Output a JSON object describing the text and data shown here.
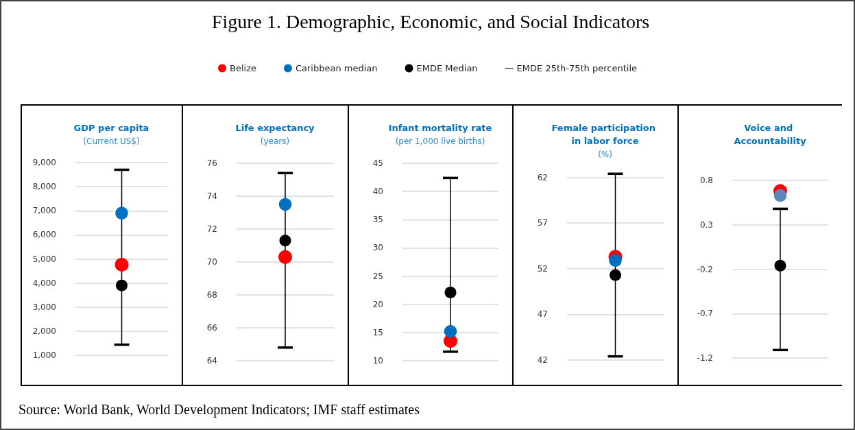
{
  "chart_data": [
    {
      "type": "scatter",
      "title": "GDP per capita",
      "subtitle": "(Current US$)",
      "annotations": [
        "Figure 1. Demographic, Economic, and Social Indicators",
        "Source: World Bank, World Development Indicators; IMF staff estimates"
      ],
      "categories": [
        null
      ],
      "ylim": [
        1000,
        9000
      ],
      "yticks": [
        {
          "value": 1000,
          "label": "1,000"
        },
        {
          "value": 2000,
          "label": "2,000"
        },
        {
          "value": 3000,
          "label": "3,000"
        },
        {
          "value": 4000,
          "label": "4,000"
        },
        {
          "value": 5000,
          "label": "5,000"
        },
        {
          "value": 6000,
          "label": "6,000"
        },
        {
          "value": 7000,
          "label": "7,000"
        },
        {
          "value": 8000,
          "label": "8,000"
        },
        {
          "value": 9000,
          "label": "9,000"
        }
      ],
      "grid": "y",
      "legend": "top",
      "marker": "circle",
      "tick_labels": "y",
      "series": [
        {
          "name": "Belize",
          "color": "#ff0000",
          "values": [
            4760
          ]
        },
        {
          "name": "Caribbean median",
          "color": "#0070c0",
          "values": [
            6900
          ]
        },
        {
          "name": "EMDE Median",
          "color": "#000000",
          "values": [
            3900
          ],
          "errors": [
            [
              1440,
              8700
            ]
          ]
        },
        {
          "name": "EMDE 25th-75th percentile",
          "type": "line",
          "color": "#000000",
          "values": [
            null
          ]
        }
      ]
    },
    {
      "type": "scatter",
      "title": "Life expectancy",
      "subtitle": "(years)",
      "categories": [
        null
      ],
      "ylim": [
        64,
        76
      ],
      "yticks": [
        64,
        66,
        68,
        70,
        72,
        74,
        76
      ],
      "grid": "y",
      "marker": "circle",
      "tick_labels": "y",
      "series": [
        {
          "color": "#ff0000",
          "values": [
            70.3
          ]
        },
        {
          "color": "#0070c0",
          "values": [
            73.5
          ]
        },
        {
          "color": "#000000",
          "values": [
            71.3
          ],
          "errors": [
            [
              64.8,
              75.4
            ]
          ]
        }
      ]
    },
    {
      "type": "scatter",
      "title": "Infant mortality rate",
      "subtitle": "(per 1,000 live births)",
      "categories": [
        null
      ],
      "ylim": [
        10,
        45
      ],
      "yticks": [
        10,
        15,
        20,
        25,
        30,
        35,
        40,
        45
      ],
      "grid": "y",
      "marker": "circle",
      "tick_labels": "y",
      "series": [
        {
          "color": "#ff0000",
          "values": [
            13.5
          ]
        },
        {
          "color": "#0070c0",
          "values": [
            15.2
          ]
        },
        {
          "color": "#000000",
          "values": [
            22.1
          ],
          "errors": [
            [
              11.6,
              42.4
            ]
          ]
        }
      ]
    },
    {
      "type": "scatter",
      "title": "Female participation in labor force",
      "subtitle": "(%)",
      "categories": [
        null
      ],
      "ylim": [
        42,
        62.5
      ],
      "yticks": [
        42,
        47,
        52,
        57,
        62
      ],
      "grid": "y",
      "marker": "circle",
      "tick_labels": "y",
      "series": [
        {
          "color": "#ff0000",
          "values": [
            53.3
          ]
        },
        {
          "color": "#0070c0",
          "values": [
            52.9
          ]
        },
        {
          "color": "#000000",
          "values": [
            51.3
          ],
          "errors": [
            [
              42.4,
              62.4
            ]
          ]
        }
      ]
    },
    {
      "type": "scatter",
      "title": "Voice and Accountability",
      "categories": [
        null
      ],
      "ylim": [
        -1.2,
        0.8
      ],
      "yticks": [
        -1.2,
        -0.7,
        -0.2,
        0.3,
        0.8
      ],
      "grid": "y",
      "marker": "circle",
      "tick_labels": "y",
      "series": [
        {
          "color": "#ff0000",
          "values": [
            0.68
          ]
        },
        {
          "color": "#5b86c0",
          "values": [
            0.63
          ]
        },
        {
          "color": "#000000",
          "values": [
            -0.16
          ],
          "errors": [
            [
              -1.11,
              0.48
            ]
          ]
        }
      ]
    }
  ]
}
